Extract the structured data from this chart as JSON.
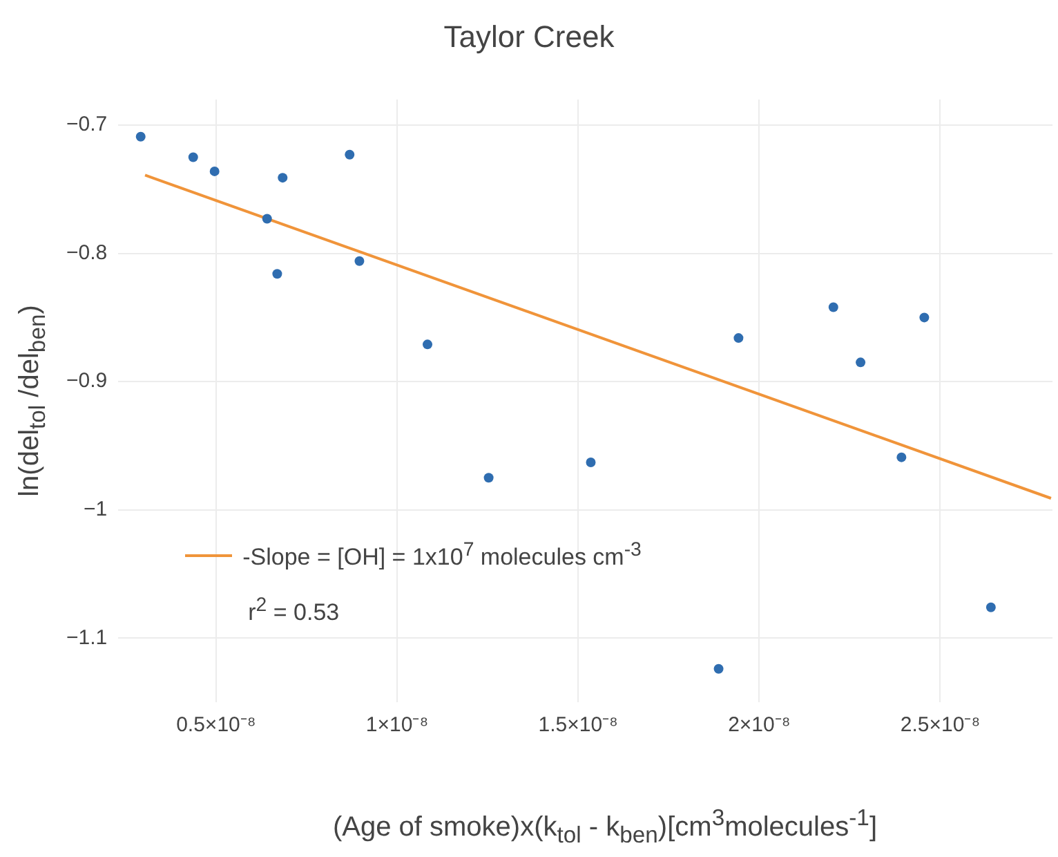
{
  "chart_data": {
    "type": "scatter",
    "title": "Taylor Creek",
    "xlabel": "(Age of smoke)x(k$_{tol}$ - k$_{ben}$)[cm$^{3}$molecules$^{-1}$]",
    "ylabel": "ln(del$_{tol}$ /del$_{ben}$)",
    "annotations": [
      "r$^{2}$ = 0.53"
    ],
    "xlim": [
      2.3e-09,
      2.81e-08
    ],
    "ylim": [
      -1.15,
      -0.68
    ],
    "xticks": [
      {
        "value": 5e-09,
        "label": "0.5×10⁻⁸"
      },
      {
        "value": 1e-08,
        "label": "1×10⁻⁸"
      },
      {
        "value": 1.5e-08,
        "label": "1.5×10⁻⁸"
      },
      {
        "value": 2e-08,
        "label": "2×10⁻⁸"
      },
      {
        "value": 2.5e-08,
        "label": "2.5×10⁻⁸"
      }
    ],
    "yticks": [
      {
        "value": -0.7,
        "label": "−0.7"
      },
      {
        "value": -0.8,
        "label": "−0.8"
      },
      {
        "value": -0.9,
        "label": "−0.9"
      },
      {
        "value": -1,
        "label": "−1"
      },
      {
        "value": -1.1,
        "label": "−1.1"
      }
    ],
    "grid": true,
    "legend": "bottom left",
    "series": [
      {
        "type": "scatter",
        "marker": "circle",
        "color": "#2f6db0",
        "x": [
          2.92e-09,
          4.37e-09,
          4.96e-09,
          6.41e-09,
          6.69e-09,
          6.84e-09,
          8.69e-09,
          8.96e-09,
          1.084e-08,
          1.253e-08,
          1.535e-08,
          1.888e-08,
          1.943e-08,
          2.205e-08,
          2.28e-08,
          2.393e-08,
          2.456e-08,
          2.64e-08
        ],
        "values": [
          -0.709,
          -0.725,
          -0.736,
          -0.773,
          -0.816,
          -0.741,
          -0.723,
          -0.806,
          -0.871,
          -0.975,
          -0.963,
          -1.124,
          -0.866,
          -0.842,
          -0.885,
          -0.959,
          -0.85,
          -1.076
        ]
      },
      {
        "type": "line",
        "marker": "none",
        "line_style": "solid",
        "name": "-Slope = [OH] = 1x10$^{7}$ molecules cm$^{-3}$",
        "color": "#f0943a",
        "x": [
          3.04e-09,
          2.806e-08
        ],
        "values": [
          -0.739,
          -0.991
        ]
      }
    ]
  }
}
